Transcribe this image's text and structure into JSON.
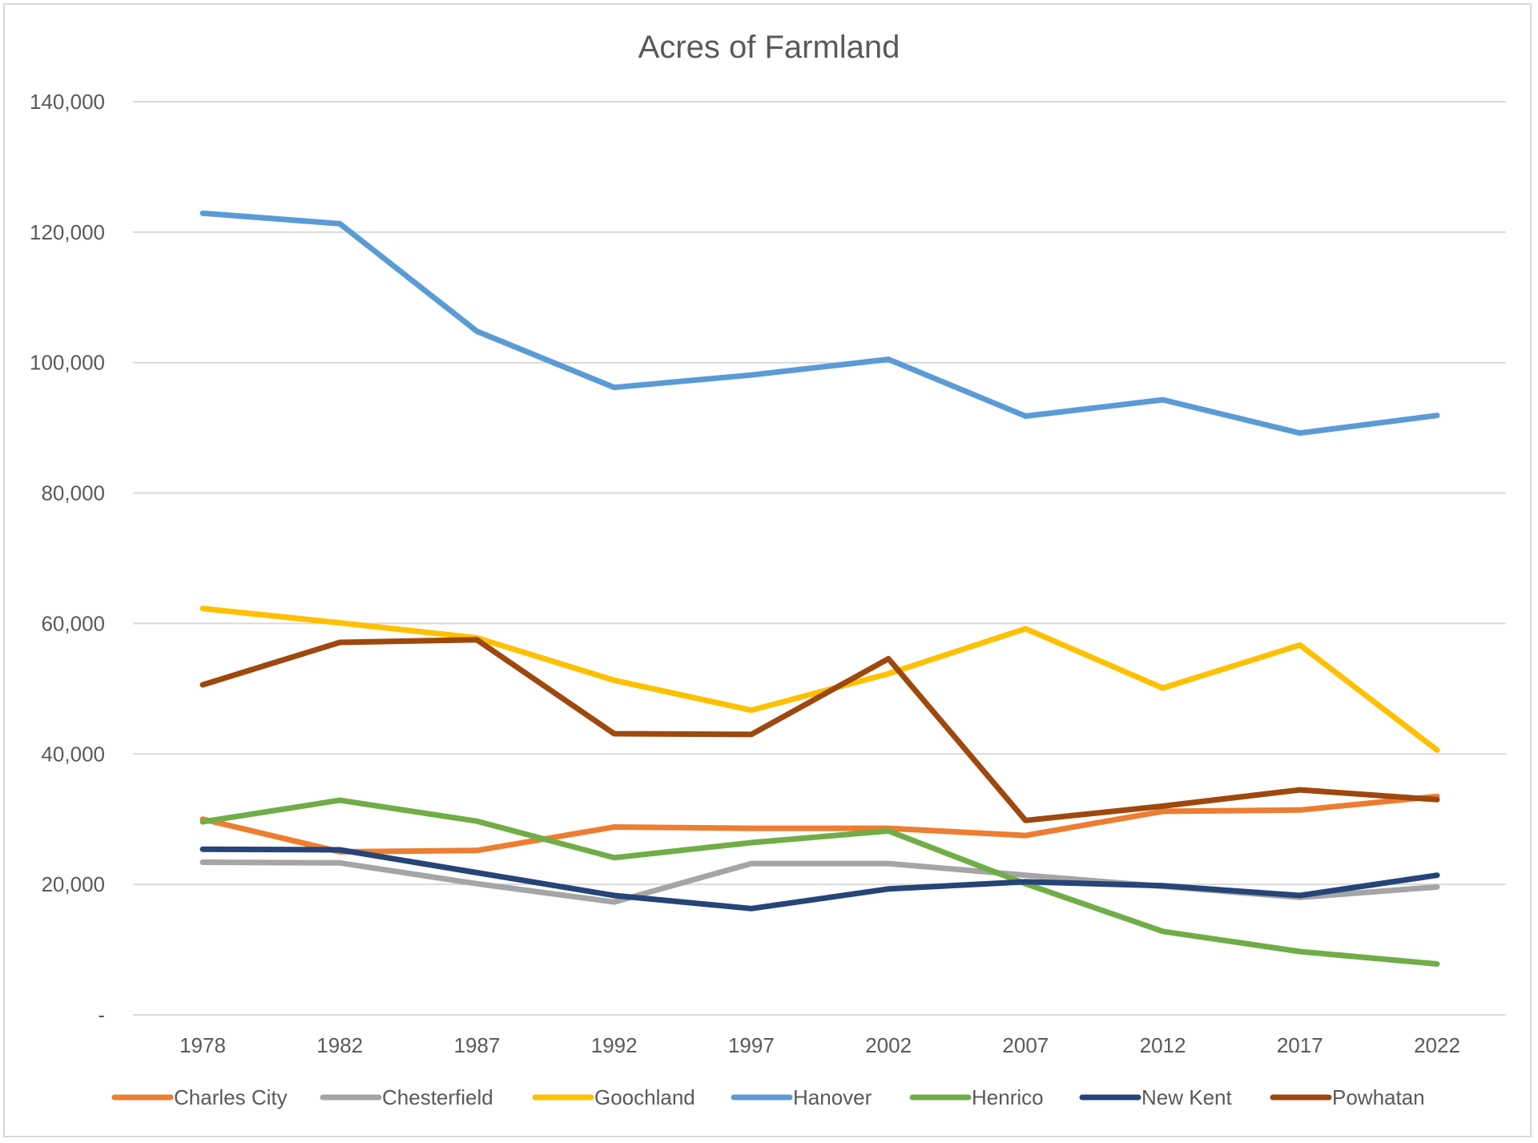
{
  "chart_data": {
    "type": "line",
    "title": "Acres of Farmland",
    "xlabel": "",
    "ylabel": "",
    "categories": [
      "1978",
      "1982",
      "1987",
      "1992",
      "1997",
      "2002",
      "2007",
      "2012",
      "2017",
      "2022"
    ],
    "ylim": [
      0,
      140000
    ],
    "ytick_values": [
      0,
      20000,
      40000,
      60000,
      80000,
      100000,
      120000,
      140000
    ],
    "ytick_labels": [
      "-",
      "20,000",
      "40,000",
      "60,000",
      "80,000",
      "100,000",
      "120,000",
      "140,000"
    ],
    "grid": true,
    "legend_position": "bottom",
    "series": [
      {
        "name": "Charles City",
        "color": "#ED7D31",
        "values": [
          30000,
          25000,
          25200,
          28800,
          28600,
          28600,
          27500,
          31200,
          31400,
          33500
        ]
      },
      {
        "name": "Chesterfield",
        "color": "#A5A5A5",
        "values": [
          23400,
          23300,
          20100,
          17300,
          23200,
          23200,
          21400,
          19700,
          18000,
          19600
        ]
      },
      {
        "name": "Goochland",
        "color": "#FFC000",
        "values": [
          62300,
          60100,
          57800,
          51300,
          46700,
          52300,
          59200,
          50100,
          56700,
          40600
        ]
      },
      {
        "name": "Hanover",
        "color": "#5B9BD5",
        "values": [
          122900,
          121300,
          104800,
          96200,
          98100,
          100500,
          91800,
          94300,
          89200,
          91900
        ]
      },
      {
        "name": "Henrico",
        "color": "#70AD47",
        "values": [
          29600,
          32900,
          29700,
          24100,
          26400,
          28200,
          20100,
          12800,
          9700,
          7800
        ]
      },
      {
        "name": "New Kent",
        "color": "#264478",
        "values": [
          25400,
          25300,
          21800,
          18300,
          16300,
          19300,
          20400,
          19800,
          18300,
          21400
        ]
      },
      {
        "name": "Powhatan",
        "color": "#9E480E",
        "values": [
          50600,
          57100,
          57500,
          43100,
          43000,
          54600,
          29800,
          32000,
          34500,
          33000
        ]
      }
    ]
  }
}
